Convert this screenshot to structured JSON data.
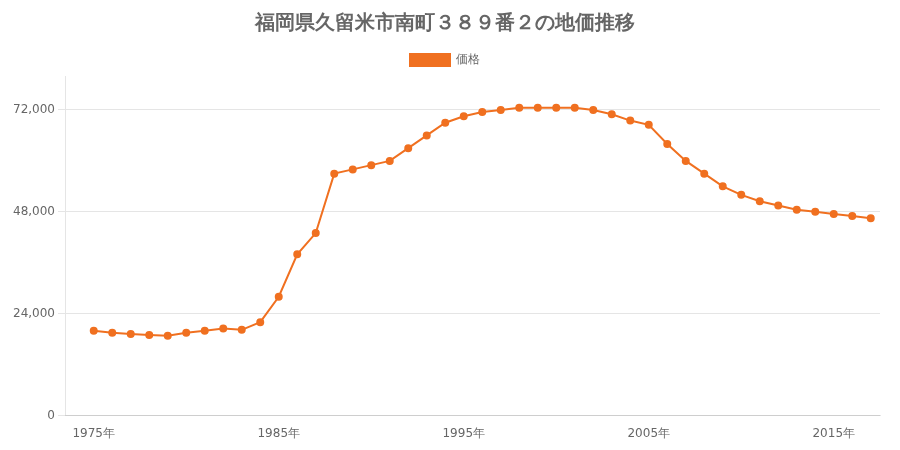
{
  "chart_data": {
    "type": "line",
    "title": "福岡県久留米市南町３８９番２の地価推移",
    "x": [
      1975,
      1976,
      1977,
      1978,
      1979,
      1980,
      1981,
      1982,
      1983,
      1984,
      1985,
      1986,
      1987,
      1988,
      1989,
      1990,
      1991,
      1992,
      1993,
      1994,
      1995,
      1996,
      1997,
      1998,
      1999,
      2000,
      2001,
      2002,
      2003,
      2004,
      2005,
      2006,
      2007,
      2008,
      2009,
      2010,
      2011,
      2012,
      2013,
      2014,
      2015,
      2016,
      2017
    ],
    "series": [
      {
        "name": "価格",
        "color": "#f07020",
        "marker": "circle",
        "values": [
          20000,
          19500,
          19200,
          19000,
          18800,
          19500,
          20000,
          20500,
          20200,
          22000,
          28000,
          38000,
          43000,
          57000,
          58000,
          59000,
          60000,
          63000,
          66000,
          69000,
          70500,
          71500,
          72000,
          72500,
          72500,
          72500,
          72500,
          72000,
          71000,
          69500,
          68500,
          64000,
          60000,
          57000,
          54000,
          52000,
          50500,
          49500,
          48500,
          48000,
          47500,
          47000,
          46500
        ]
      }
    ],
    "xlim": [
      1973.5,
      2017.5
    ],
    "xticks": [
      {
        "value": 1975,
        "label": "1975年"
      },
      {
        "value": 1985,
        "label": "1985年"
      },
      {
        "value": 1995,
        "label": "1995年"
      },
      {
        "value": 2005,
        "label": "2005年"
      },
      {
        "value": 2015,
        "label": "2015年"
      }
    ],
    "ylim": [
      0,
      80000
    ],
    "yticks": [
      0,
      {
        "value": 24000,
        "label": "24,000"
      },
      {
        "value": 48000,
        "label": "48,000"
      },
      {
        "value": 72000,
        "label": "72,000"
      }
    ],
    "grid": "y",
    "legend": "top"
  }
}
